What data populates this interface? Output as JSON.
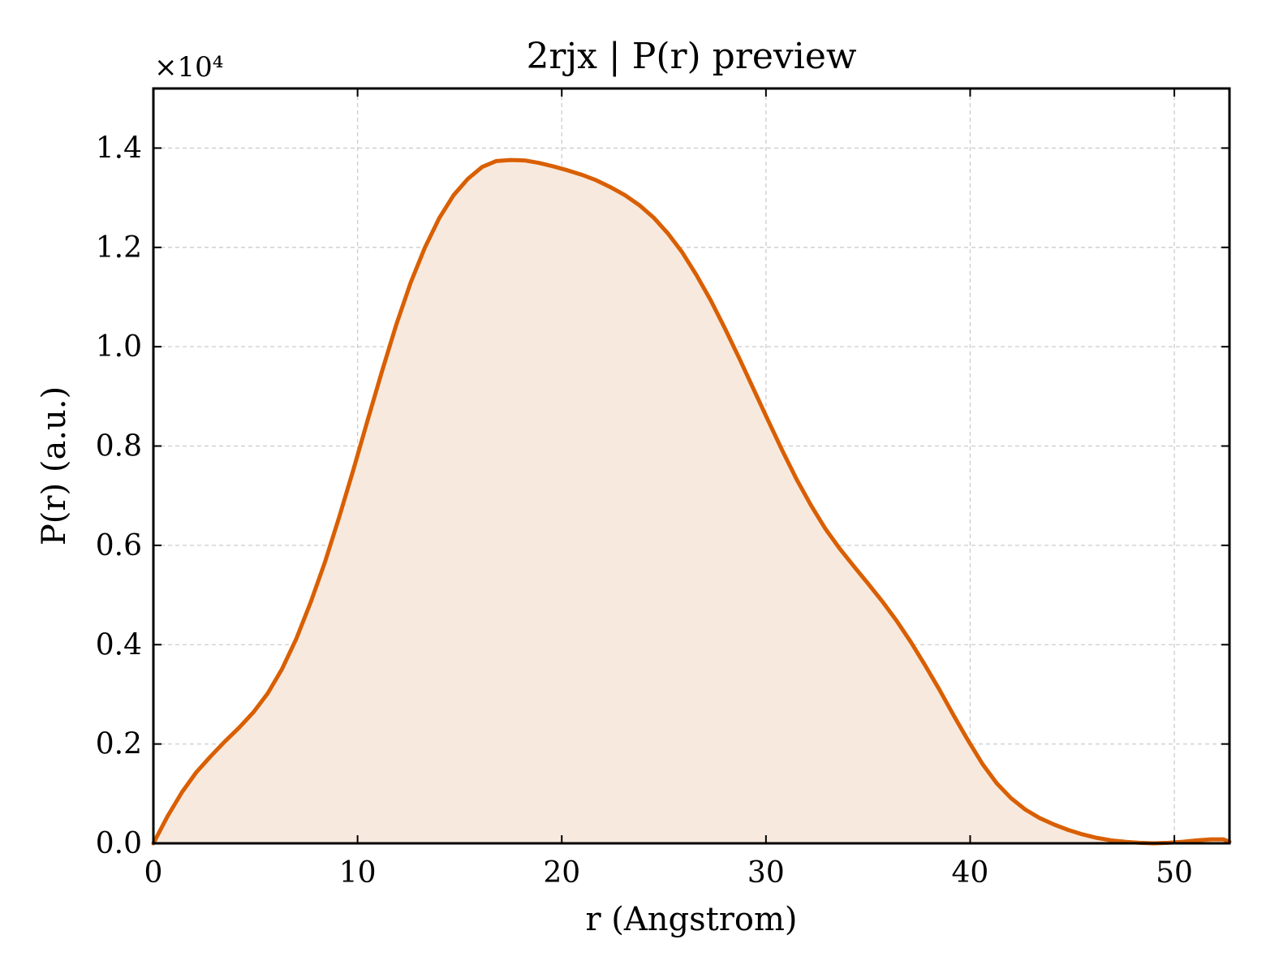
{
  "chart_data": {
    "type": "area",
    "title": "2rjx | P(r) preview",
    "xlabel": "r (Angstrom)",
    "ylabel": "P(r) (a.u.)",
    "y_offset_label": "×10⁴",
    "xlim": [
      0,
      52.7
    ],
    "ylim": [
      0,
      1.52
    ],
    "xticks": [
      0,
      10,
      20,
      30,
      40,
      50
    ],
    "xtick_labels": [
      "0",
      "10",
      "20",
      "30",
      "40",
      "50"
    ],
    "yticks": [
      0.0,
      0.2,
      0.4,
      0.6,
      0.8,
      1.0,
      1.2,
      1.4
    ],
    "ytick_labels": [
      "0.0",
      "0.2",
      "0.4",
      "0.6",
      "0.8",
      "1.0",
      "1.2",
      "1.4"
    ],
    "grid": true,
    "line_color": "#d95f02",
    "fill_color": "#f8e9de",
    "series": [
      {
        "x": [
          0,
          0.7,
          1.4,
          2.1,
          2.8,
          3.5,
          4.2,
          4.9,
          5.6,
          6.3,
          7.0,
          7.7,
          8.4,
          9.1,
          9.8,
          10.5,
          11.2,
          11.9,
          12.6,
          13.3,
          14.0,
          14.7,
          15.4,
          16.1,
          16.8,
          17.5,
          18.2,
          18.9,
          19.6,
          20.3,
          21.0,
          21.7,
          22.4,
          23.1,
          23.8,
          24.5,
          25.2,
          25.9,
          26.6,
          27.3,
          28.0,
          28.7,
          29.4,
          30.1,
          30.8,
          31.5,
          32.2,
          32.9,
          33.6,
          34.3,
          35.0,
          35.7,
          36.4,
          37.1,
          37.8,
          38.5,
          39.2,
          39.9,
          40.6,
          41.3,
          42.0,
          42.7,
          43.4,
          44.1,
          44.8,
          45.5,
          46.2,
          46.9,
          47.6,
          48.3,
          49.0,
          49.7,
          50.4,
          51.1,
          51.8,
          52.4,
          52.7
        ],
        "y": [
          0.0,
          0.055,
          0.103,
          0.143,
          0.175,
          0.205,
          0.233,
          0.264,
          0.302,
          0.351,
          0.412,
          0.485,
          0.566,
          0.657,
          0.753,
          0.853,
          0.951,
          1.045,
          1.129,
          1.2,
          1.259,
          1.305,
          1.338,
          1.362,
          1.374,
          1.376,
          1.375,
          1.37,
          1.363,
          1.355,
          1.346,
          1.335,
          1.321,
          1.305,
          1.285,
          1.26,
          1.228,
          1.19,
          1.144,
          1.093,
          1.036,
          0.976,
          0.914,
          0.852,
          0.791,
          0.733,
          0.681,
          0.634,
          0.594,
          0.558,
          0.523,
          0.487,
          0.448,
          0.405,
          0.358,
          0.309,
          0.257,
          0.207,
          0.16,
          0.121,
          0.091,
          0.068,
          0.051,
          0.038,
          0.027,
          0.018,
          0.011,
          0.006,
          0.003,
          0.001,
          0.0,
          0.001,
          0.003,
          0.006,
          0.008,
          0.008,
          0.003
        ]
      }
    ]
  }
}
